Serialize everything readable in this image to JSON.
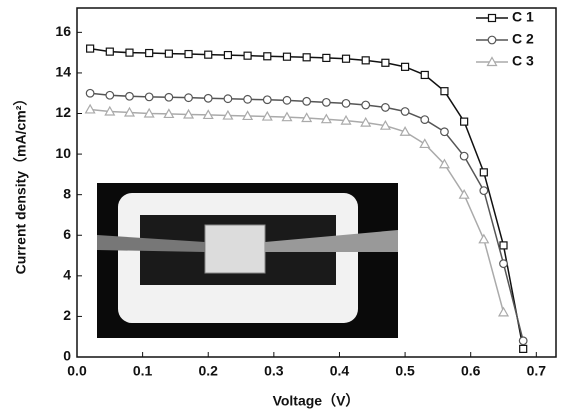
{
  "chart_data": {
    "type": "line",
    "xlabel": "Voltage（V）",
    "ylabel": "Current density（mA/cm²）",
    "x": [
      0.02,
      0.05,
      0.08,
      0.11,
      0.14,
      0.17,
      0.2,
      0.23,
      0.26,
      0.29,
      0.32,
      0.35,
      0.38,
      0.41,
      0.44,
      0.47,
      0.5,
      0.53,
      0.56,
      0.59,
      0.62,
      0.65,
      0.68
    ],
    "series": [
      {
        "name": "C 1",
        "color": "#111111",
        "marker": "square",
        "values": [
          15.2,
          15.05,
          15.0,
          14.98,
          14.95,
          14.93,
          14.9,
          14.88,
          14.85,
          14.82,
          14.8,
          14.77,
          14.74,
          14.7,
          14.62,
          14.5,
          14.3,
          13.9,
          13.1,
          11.6,
          9.1,
          5.5,
          0.4
        ]
      },
      {
        "name": "C 2",
        "color": "#555555",
        "marker": "circle",
        "values": [
          13.0,
          12.9,
          12.85,
          12.82,
          12.8,
          12.78,
          12.75,
          12.73,
          12.7,
          12.68,
          12.65,
          12.6,
          12.55,
          12.5,
          12.42,
          12.3,
          12.1,
          11.7,
          11.1,
          9.9,
          8.2,
          4.6,
          0.8
        ]
      },
      {
        "name": "C 3",
        "color": "#aaaaaa",
        "marker": "triangle",
        "values": [
          12.2,
          12.1,
          12.05,
          12.0,
          11.98,
          11.95,
          11.93,
          11.9,
          11.88,
          11.85,
          11.82,
          11.78,
          11.72,
          11.65,
          11.55,
          11.4,
          11.1,
          10.5,
          9.5,
          8.0,
          5.8,
          2.2,
          null
        ]
      }
    ],
    "xlim": [
      0,
      0.73
    ],
    "ylim": [
      0,
      17.2
    ],
    "xticks": [
      {
        "value": 0,
        "label": "0.0"
      },
      0.1,
      0.2,
      0.3,
      0.4,
      0.5,
      0.6,
      0.7
    ],
    "yticks": [
      0,
      2,
      4,
      6,
      8,
      10,
      12,
      14,
      16
    ],
    "legend": "upper right",
    "grid": false
  }
}
